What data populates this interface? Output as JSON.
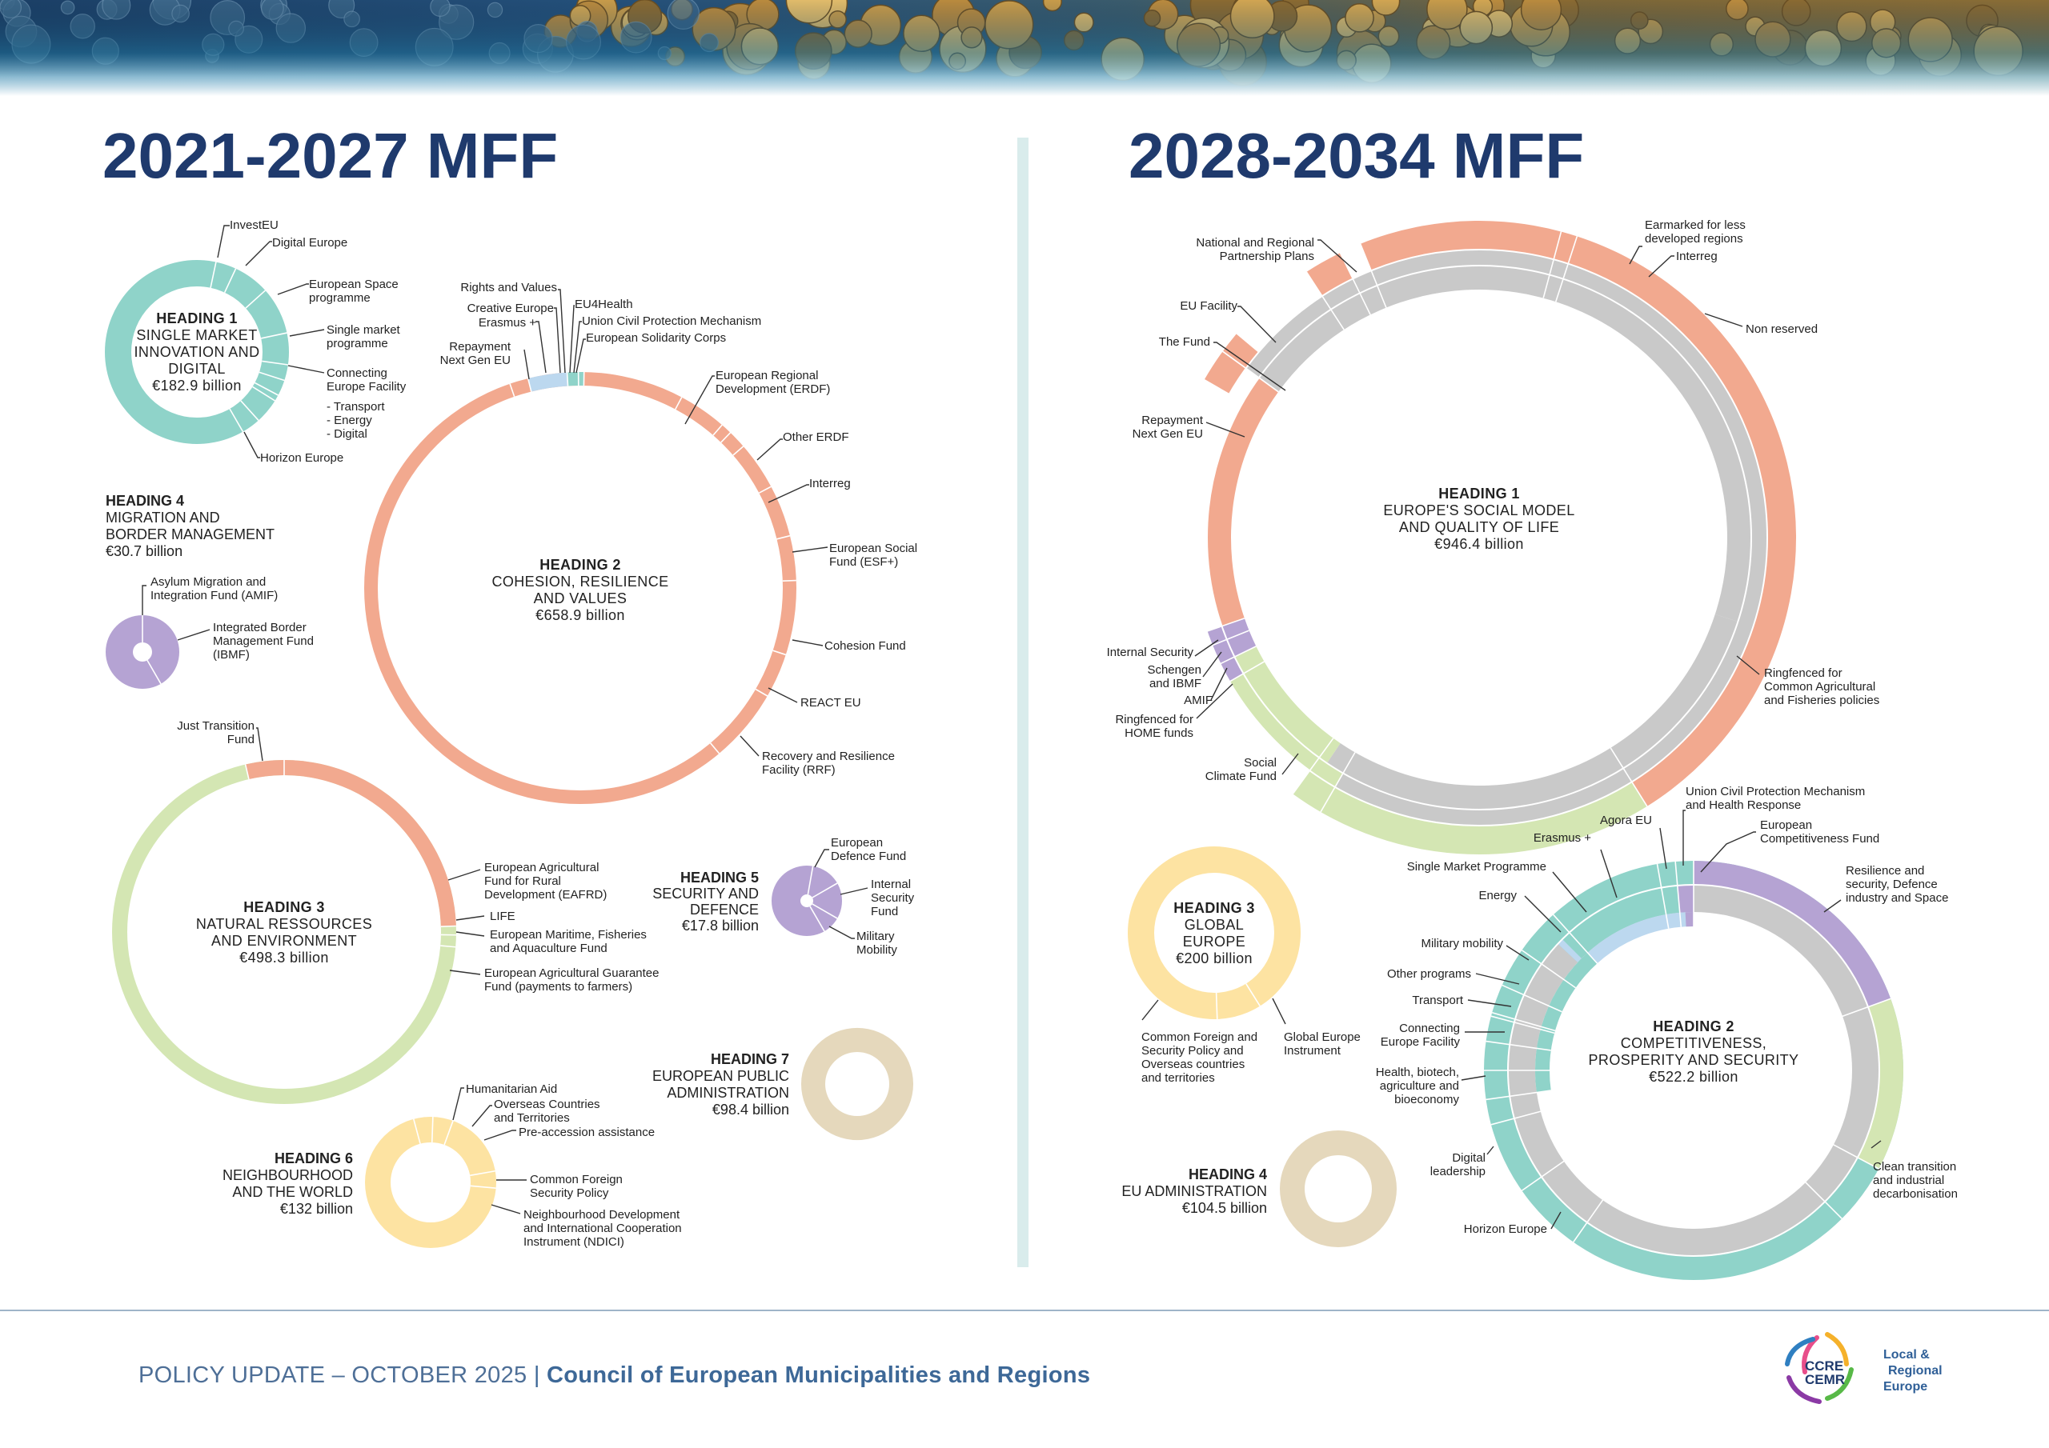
{
  "footer": {
    "prefix": "POLICY UPDATE – OCTOBER 2025",
    "separator": "|",
    "org": "Council of European Municipalities and Regions"
  },
  "logo": {
    "mark_top": "CCRE",
    "mark_bottom": "CEMR",
    "tag1": "Local &",
    "tag2": "Regional",
    "tag3": "Europe"
  },
  "colors": {
    "navy": "#1f3a6d",
    "salmon": "#f2a98f",
    "teal": "#8fd3c9",
    "lavender": "#b5a3d3",
    "lightblue": "#bcd8ef",
    "green": "#d4e6b3",
    "yellow": "#fde3a2",
    "beige": "#e5d8bc",
    "grey": "#c9c9c9"
  },
  "chart_data": [
    {
      "type": "donut",
      "title": "2021-2027 MFF",
      "unit": "€ billion",
      "headings": [
        {
          "id": "h1",
          "name": "HEADING 1",
          "desc": [
            "SINGLE MARKET",
            "INNOVATION AND",
            "DIGITAL"
          ],
          "total": "€182.9 billion",
          "value": 182.9,
          "programmes": [
            "InvestEU",
            "Digital Europe",
            "European Space programme",
            "Single market programme",
            "Connecting Europe Facility",
            "Transport",
            "Energy",
            "Digital",
            "Horizon Europe"
          ]
        },
        {
          "id": "h2",
          "name": "HEADING 2",
          "desc": [
            "COHESION, RESILIENCE",
            "AND VALUES"
          ],
          "total": "€658.9 billion",
          "value": 658.9,
          "programmes": [
            "Rights and Values",
            "Creative Europe",
            "Erasmus +",
            "Repayment Next Gen EU",
            "EU4Health",
            "Union Civil Protection Mechanism",
            "European Solidarity Corps",
            "European Regional Development (ERDF)",
            "Other ERDF",
            "Interreg",
            "European Social Fund (ESF+)",
            "Cohesion Fund",
            "REACT EU",
            "Recovery and Resilience Facility (RRF)"
          ]
        },
        {
          "id": "h3",
          "name": "HEADING 3",
          "desc": [
            "NATURAL RESSOURCES",
            "AND ENVIRONMENT"
          ],
          "total": "€498.3 billion",
          "value": 498.3,
          "programmes": [
            "Just Transition Fund",
            "European Agricultural Fund for Rural Development (EAFRD)",
            "LIFE",
            "European Maritime, Fisheries and Aquaculture Fund",
            "European Agricultural Guarantee Fund (payments to farmers)"
          ]
        },
        {
          "id": "h4",
          "name": "HEADING 4",
          "desc": [
            "MIGRATION AND",
            "BORDER MANAGEMENT"
          ],
          "total": "€30.7 billion",
          "value": 30.7,
          "programmes": [
            "Asylum Migration and Integration Fund (AMIF)",
            "Integrated Border Management Fund (IBMF)"
          ]
        },
        {
          "id": "h5",
          "name": "HEADING 5",
          "desc": [
            "SECURITY AND",
            "DEFENCE"
          ],
          "total": "€17.8 billion",
          "value": 17.8,
          "programmes": [
            "European Defence Fund",
            "Internal Security Fund",
            "Military Mobility"
          ]
        },
        {
          "id": "h6",
          "name": "HEADING 6",
          "desc": [
            "NEIGHBOURHOOD",
            "AND THE WORLD"
          ],
          "total": "€132 billion",
          "value": 132,
          "programmes": [
            "Humanitarian Aid",
            "Overseas Countries and Territories",
            "Pre-accession assistance",
            "Common Foreign Security Policy",
            "Neighbourhood Development and International Cooperation Instrument (NDICI)"
          ]
        },
        {
          "id": "h7",
          "name": "HEADING 7",
          "desc": [
            "EUROPEAN PUBLIC",
            "ADMINISTRATION"
          ],
          "total": "€98.4 billion",
          "value": 98.4,
          "programmes": []
        }
      ]
    },
    {
      "type": "donut",
      "title": "2028-2034 MFF",
      "unit": "€ billion",
      "headings": [
        {
          "id": "n1",
          "name": "HEADING 1",
          "desc": [
            "EUROPE'S SOCIAL MODEL",
            "AND QUALITY OF LIFE"
          ],
          "total": "€946.4 billion",
          "value": 946.4,
          "programmes": [
            "Earmarked for less developed regions",
            "Interreg",
            "Non reserved",
            "National and Regional Partnership Plans",
            "EU Facility",
            "The Fund",
            "Repayment Next Gen EU",
            "Internal Security",
            "Schengen and IBMF",
            "AMIF",
            "Ringfenced for HOME funds",
            "Social Climate Fund",
            "Ringfenced for Common Agricultural and Fisheries policies"
          ]
        },
        {
          "id": "n2",
          "name": "HEADING 2",
          "desc": [
            "COMPETITIVENESS,",
            "PROSPERITY AND SECURITY"
          ],
          "total": "€522.2 billion",
          "value": 522.2,
          "programmes": [
            "Union Civil Protection Mechanism and Health Response",
            "European Competitiveness Fund",
            "Agora EU",
            "Erasmus +",
            "Single Market Programme",
            "Energy",
            "Military mobility",
            "Other programs",
            "Transport",
            "Connecting Europe Facility",
            "Health, biotech, agriculture and bioeconomy",
            "Digital leadership",
            "Horizon Europe",
            "Resilience and security, Defence industry and Space",
            "Clean transition and industrial decarbonisation"
          ]
        },
        {
          "id": "n3",
          "name": "HEADING 3",
          "desc": [
            "GLOBAL",
            "EUROPE"
          ],
          "total": "€200 billion",
          "value": 200,
          "programmes": [
            "Common Foreign and Security Policy and Overseas countries and territories",
            "Global Europe Instrument"
          ]
        },
        {
          "id": "n4",
          "name": "HEADING 4",
          "desc": [
            "EU ADMINISTRATION"
          ],
          "total": "€104.5 billion",
          "value": 104.5,
          "programmes": []
        }
      ]
    }
  ]
}
